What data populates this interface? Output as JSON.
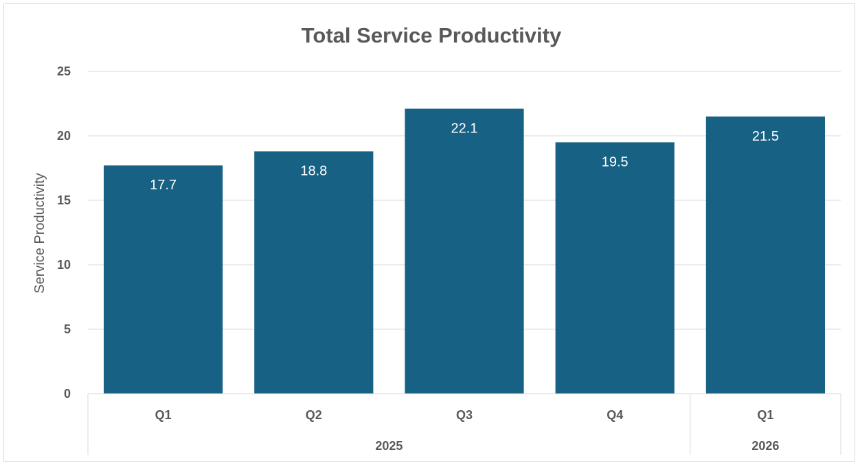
{
  "chart_data": {
    "type": "bar",
    "title": "Total Service Productivity",
    "ylabel": "Service Productivity",
    "xlabel": "",
    "ylim": [
      0,
      25
    ],
    "yticks": [
      0,
      5,
      10,
      15,
      20,
      25
    ],
    "grid": true,
    "legend": "none",
    "categories": [
      "Q1",
      "Q2",
      "Q3",
      "Q4",
      "Q1"
    ],
    "groups": [
      {
        "label": "2025",
        "count": 4
      },
      {
        "label": "2026",
        "count": 1
      }
    ],
    "values": [
      17.7,
      18.8,
      22.1,
      19.5,
      21.5
    ],
    "data_labels": [
      "17.7",
      "18.8",
      "22.1",
      "19.5",
      "21.5"
    ],
    "bar_color": "#176184"
  }
}
